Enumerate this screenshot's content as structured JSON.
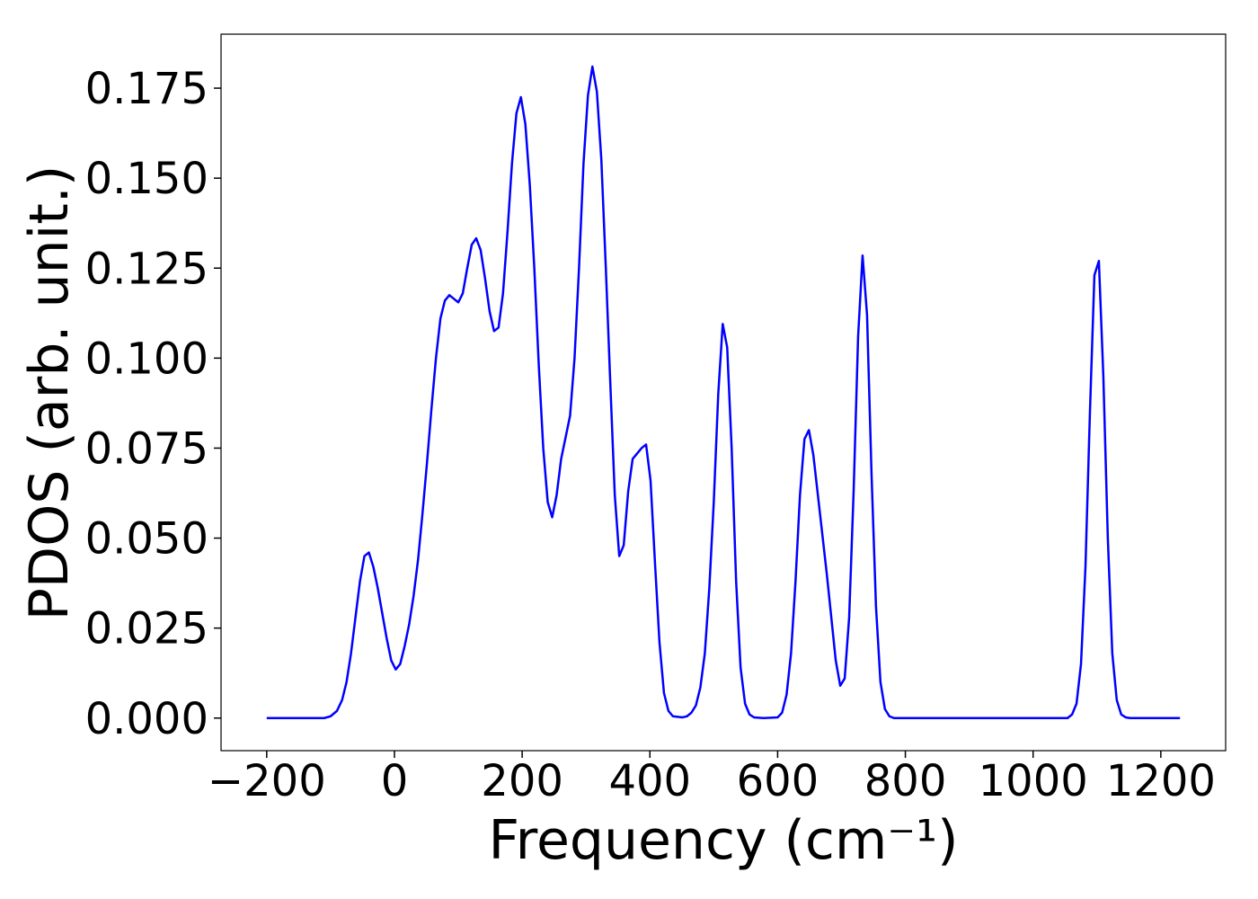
{
  "chart_data": {
    "type": "line",
    "x_label": "Frequency (cm⁻¹)",
    "y_label": "PDOS (arb. unit.)",
    "x": [
      -200,
      -110,
      -100,
      -90,
      -82,
      -75,
      -68,
      -61,
      -54,
      -47,
      -40,
      -33,
      -26,
      -19,
      -12,
      -5,
      2,
      9,
      16,
      23,
      30,
      37,
      44,
      51,
      58,
      65,
      72,
      79,
      86,
      93,
      100,
      107,
      114,
      121,
      128,
      135,
      142,
      149,
      156,
      163,
      170,
      177,
      184,
      191,
      198,
      205,
      212,
      219,
      226,
      233,
      240,
      247,
      254,
      261,
      268,
      275,
      282,
      289,
      296,
      303,
      310,
      317,
      324,
      331,
      338,
      345,
      352,
      359,
      366,
      373,
      380,
      387,
      394,
      401,
      408,
      415,
      422,
      429,
      436,
      451,
      458,
      465,
      472,
      479,
      486,
      493,
      500,
      507,
      514,
      521,
      528,
      535,
      542,
      549,
      556,
      563,
      578,
      600,
      607,
      614,
      621,
      628,
      635,
      642,
      649,
      656,
      663,
      670,
      677,
      684,
      691,
      698,
      705,
      712,
      719,
      726,
      733,
      740,
      747,
      754,
      761,
      768,
      775,
      782,
      1054,
      1061,
      1068,
      1075,
      1082,
      1089,
      1096,
      1103,
      1110,
      1117,
      1124,
      1131,
      1138,
      1145,
      1152,
      1230
    ],
    "series": [
      {
        "color": "#0000ff",
        "values": [
          0,
          0,
          0.0005,
          0.002,
          0.005,
          0.01,
          0.018,
          0.028,
          0.038,
          0.045,
          0.046,
          0.042,
          0.036,
          0.029,
          0.022,
          0.016,
          0.0135,
          0.015,
          0.02,
          0.026,
          0.034,
          0.044,
          0.057,
          0.071,
          0.086,
          0.1,
          0.111,
          0.116,
          0.1175,
          0.1165,
          0.1155,
          0.118,
          0.125,
          0.1315,
          0.1333,
          0.13,
          0.122,
          0.113,
          0.1075,
          0.1085,
          0.118,
          0.135,
          0.154,
          0.168,
          0.1725,
          0.165,
          0.148,
          0.125,
          0.098,
          0.075,
          0.06,
          0.0558,
          0.062,
          0.072,
          0.078,
          0.084,
          0.1,
          0.125,
          0.154,
          0.173,
          0.181,
          0.174,
          0.155,
          0.125,
          0.093,
          0.062,
          0.045,
          0.048,
          0.063,
          0.072,
          0.0735,
          0.075,
          0.076,
          0.066,
          0.043,
          0.021,
          0.007,
          0.002,
          0.0005,
          0.0002,
          0.0005,
          0.0015,
          0.0035,
          0.0085,
          0.018,
          0.036,
          0.06,
          0.09,
          0.1095,
          0.103,
          0.075,
          0.038,
          0.014,
          0.004,
          0.001,
          0.0002,
          0,
          0.0002,
          0.0015,
          0.0065,
          0.018,
          0.038,
          0.062,
          0.0775,
          0.08,
          0.073,
          0.062,
          0.051,
          0.04,
          0.028,
          0.016,
          0.009,
          0.011,
          0.028,
          0.063,
          0.106,
          0.1285,
          0.112,
          0.068,
          0.031,
          0.01,
          0.0025,
          0.0005,
          0,
          0,
          0.001,
          0.004,
          0.015,
          0.042,
          0.085,
          0.123,
          0.127,
          0.095,
          0.05,
          0.018,
          0.005,
          0.001,
          0.0002,
          0,
          0
        ]
      }
    ],
    "xlim": [
      -271.5,
      1301.5
    ],
    "ylim": [
      -0.00905,
      0.19
    ],
    "xticks": [
      {
        "value": -200,
        "label": "−200"
      },
      0,
      200,
      400,
      600,
      800,
      1000,
      1200
    ],
    "yticks": [
      {
        "value": 0,
        "label": "0.000"
      },
      0.025,
      {
        "value": 0.05,
        "label": "0.050"
      },
      0.075,
      {
        "value": 0.1,
        "label": "0.100"
      },
      0.125,
      {
        "value": 0.15,
        "label": "0.150"
      },
      0.175
    ]
  }
}
